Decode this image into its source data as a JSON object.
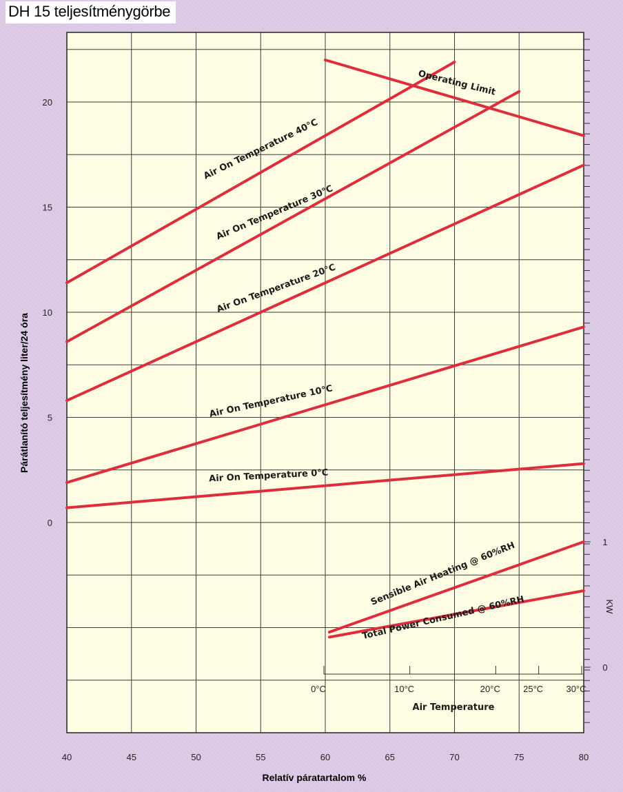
{
  "page": {
    "title": "DH 15 teljesítménygörbe"
  },
  "chart_data": {
    "type": "line",
    "title": "DH 15 teljesítménygörbe",
    "xlabel": "Relatív páratartalom %",
    "ylabel": "Párátlanító teljesítmény  liter/24 óra",
    "xlim": [
      40,
      80
    ],
    "ylim": [
      -10,
      22
    ],
    "x_ticks": [
      40,
      45,
      50,
      55,
      60,
      65,
      70,
      75,
      80
    ],
    "y_ticks": [
      0,
      5,
      10,
      15,
      20
    ],
    "grid": true,
    "series": [
      {
        "name": "Air On Temperature 40°C",
        "x": [
          40,
          70
        ],
        "y": [
          11.4,
          21.9
        ]
      },
      {
        "name": "Air On Temperature 30°C",
        "x": [
          40,
          75
        ],
        "y": [
          8.6,
          20.5
        ]
      },
      {
        "name": "Air On Temperature 20°C",
        "x": [
          40,
          80
        ],
        "y": [
          5.8,
          17.0
        ]
      },
      {
        "name": "Air On Temperature 10°C",
        "x": [
          40,
          80
        ],
        "y": [
          1.9,
          9.3
        ]
      },
      {
        "name": "Air On Temperature 0°C",
        "x": [
          40,
          80
        ],
        "y": [
          0.7,
          2.8
        ]
      },
      {
        "name": "Operating Limit",
        "x": [
          60,
          80
        ],
        "y": [
          22.0,
          18.4
        ]
      }
    ],
    "secondary": {
      "xlabel": "Air Temperature",
      "ylabel": "KW",
      "x_ticks": [
        "0°C",
        "10°C",
        "20°C",
        "25°C",
        "30°C"
      ],
      "x_tick_pos": [
        0,
        10,
        20,
        25,
        30
      ],
      "xlim": [
        0,
        30
      ],
      "y_ticks": [
        0,
        1
      ],
      "ylim": [
        0,
        1
      ],
      "series": [
        {
          "name": "Sensible Air Heating @ 60%RH",
          "x": [
            0,
            30
          ],
          "y": [
            0.28,
            1.0
          ]
        },
        {
          "name": "Total Power Consumed @ 60%RH",
          "x": [
            0,
            30
          ],
          "y": [
            0.24,
            0.61
          ]
        }
      ]
    }
  }
}
